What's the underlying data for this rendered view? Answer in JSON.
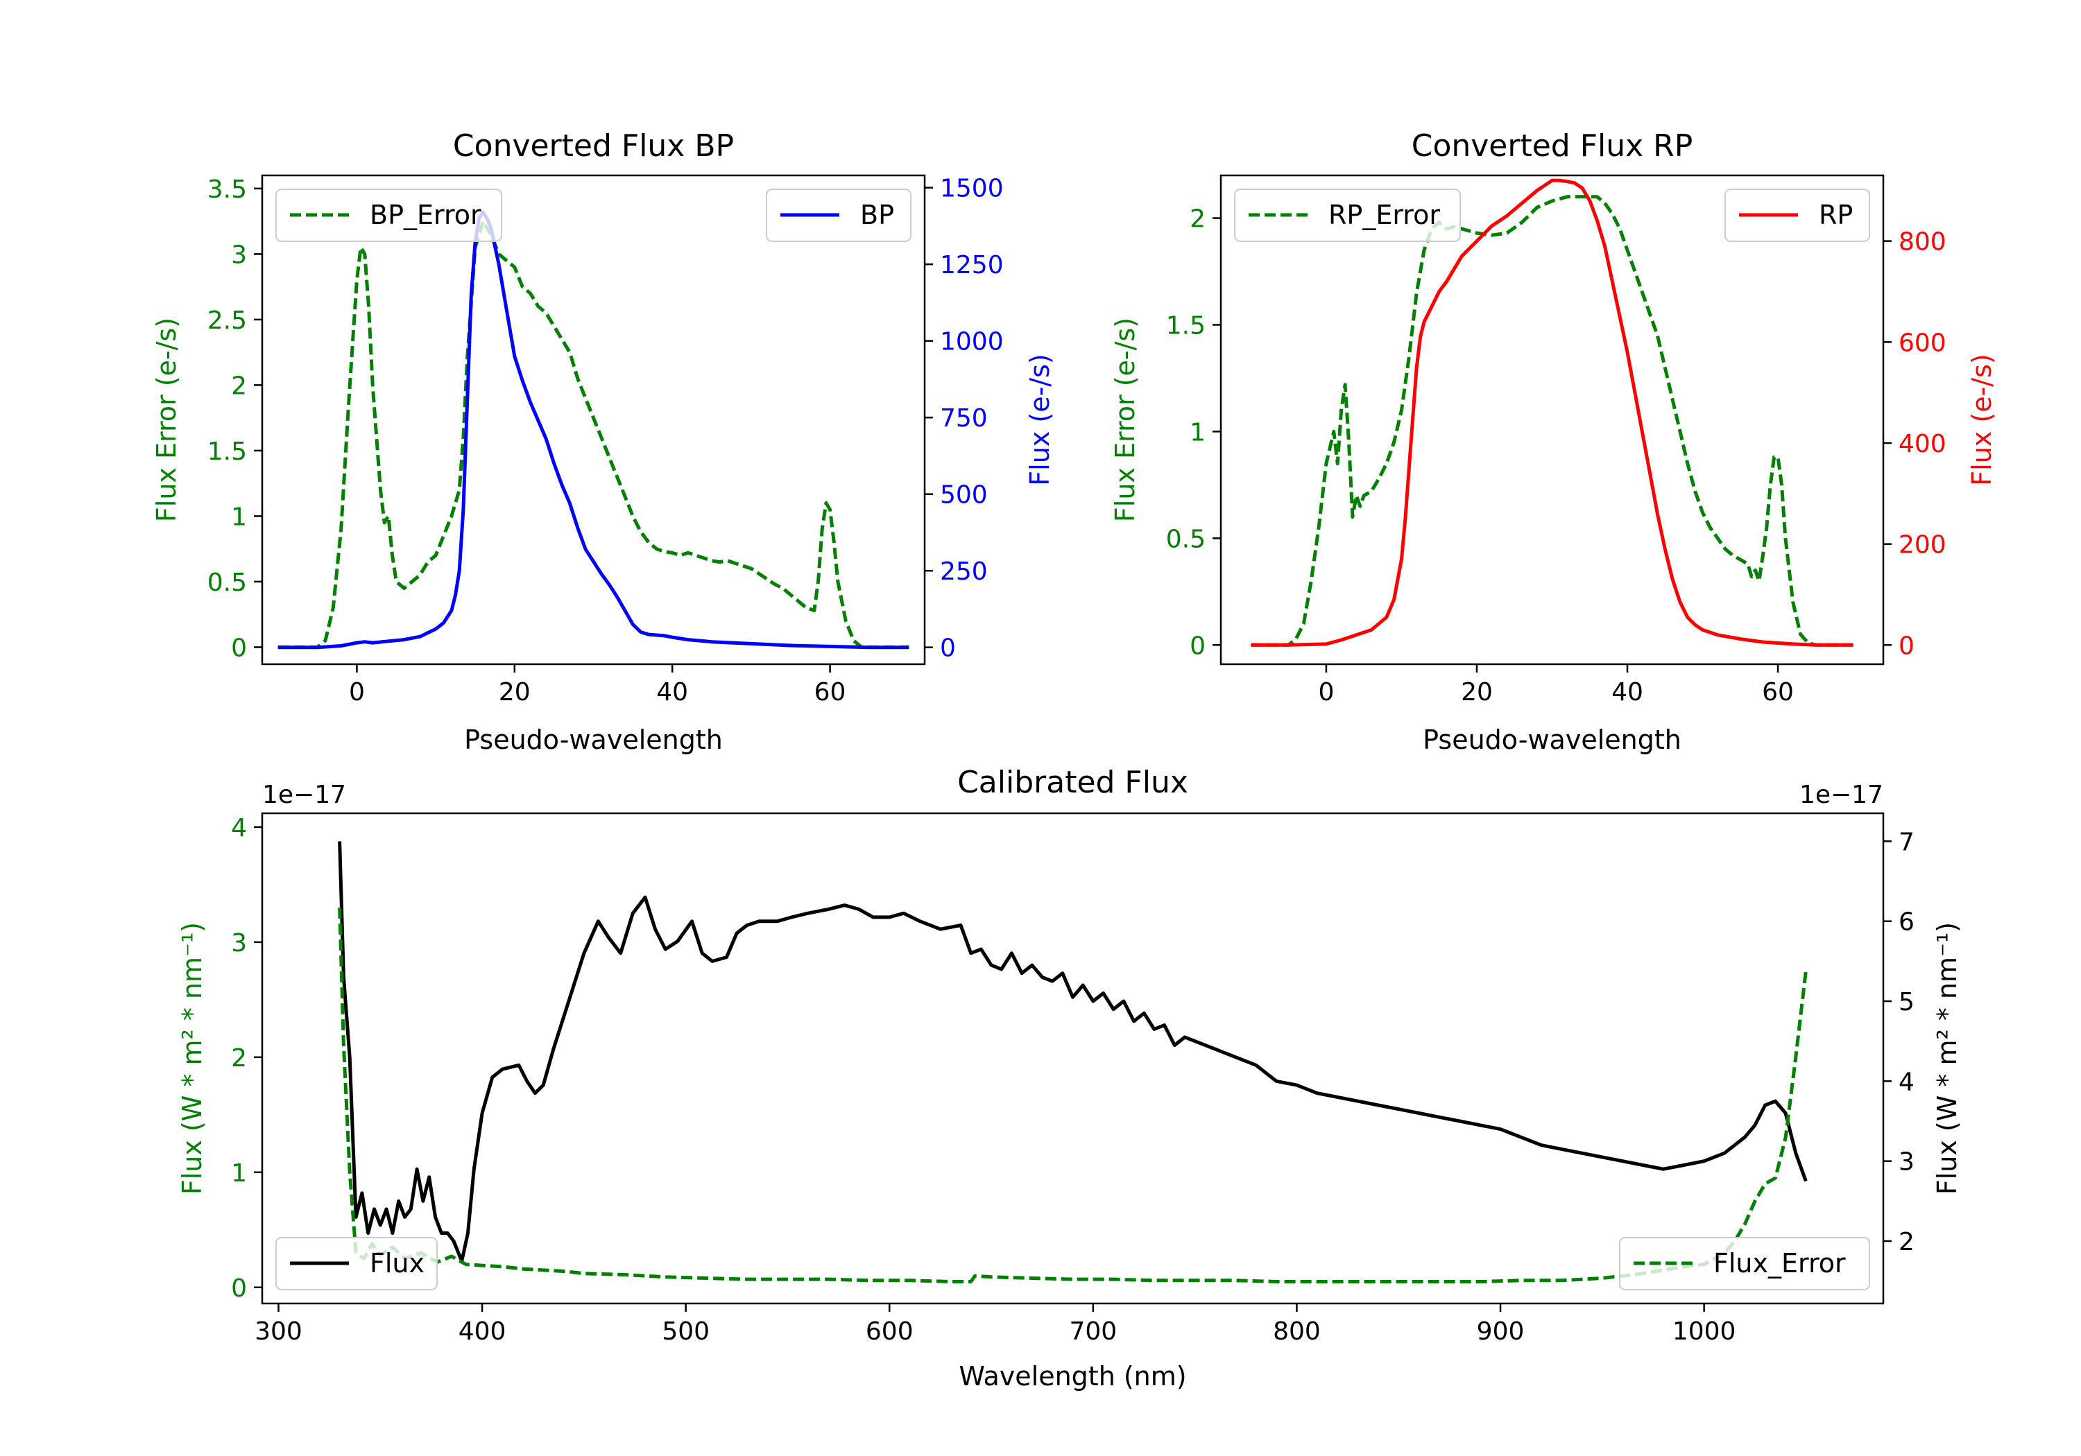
{
  "colors": {
    "green": "#008000",
    "blue": "#0000ff",
    "red": "#ff0000",
    "black": "#000000"
  },
  "chart_data": [
    {
      "type": "line",
      "id": "bp",
      "title": "Converted Flux BP",
      "xlabel": "Pseudo-wavelength",
      "ylabel_left": "Flux Error (e-/s)",
      "ylabel_right": "Flux (e-/s)",
      "xlim": [
        -12,
        72
      ],
      "ylim_left": [
        -0.13,
        3.6
      ],
      "ylim_right": [
        -55,
        1540
      ],
      "xticks": [
        0,
        20,
        40,
        60
      ],
      "yticks_left": [
        0.0,
        0.5,
        1.0,
        1.5,
        2.0,
        2.5,
        3.0,
        3.5
      ],
      "yticks_right": [
        0,
        250,
        500,
        750,
        1000,
        1250,
        1500
      ],
      "series": [
        {
          "name": "BP_Error",
          "axis": "left",
          "style": "dashed",
          "color": "#008000",
          "legend": "upper left",
          "x": [
            -10,
            -5,
            -4,
            -3,
            -2,
            -1,
            0,
            0.5,
            1,
            1.5,
            2,
            3,
            3.5,
            4,
            4.5,
            5,
            6,
            7,
            8,
            9,
            10,
            11,
            12,
            13,
            13.5,
            14,
            15,
            16,
            17,
            18,
            19,
            20,
            21,
            22,
            23,
            24,
            25,
            26,
            27,
            28,
            29,
            30,
            31,
            32,
            33,
            34,
            35,
            36,
            37,
            38,
            39,
            40,
            41,
            42,
            43,
            44,
            45,
            46,
            47,
            48,
            49,
            50,
            51,
            52,
            53,
            54,
            55,
            56,
            57,
            58,
            58.5,
            59,
            59.5,
            60,
            60.5,
            61,
            62,
            63,
            64,
            65,
            66,
            70
          ],
          "y": [
            0.0,
            0.0,
            0.05,
            0.3,
            0.9,
            1.9,
            2.8,
            3.05,
            3.0,
            2.6,
            2.0,
            1.2,
            0.95,
            1.0,
            0.7,
            0.5,
            0.45,
            0.5,
            0.55,
            0.65,
            0.7,
            0.85,
            1.0,
            1.2,
            1.6,
            2.2,
            3.05,
            3.25,
            3.15,
            3.0,
            2.95,
            2.9,
            2.75,
            2.7,
            2.6,
            2.55,
            2.45,
            2.35,
            2.25,
            2.05,
            1.9,
            1.75,
            1.6,
            1.45,
            1.3,
            1.15,
            1.0,
            0.88,
            0.8,
            0.75,
            0.73,
            0.72,
            0.7,
            0.72,
            0.7,
            0.68,
            0.66,
            0.65,
            0.66,
            0.64,
            0.62,
            0.6,
            0.56,
            0.52,
            0.48,
            0.45,
            0.4,
            0.35,
            0.3,
            0.28,
            0.5,
            0.9,
            1.1,
            1.05,
            0.8,
            0.5,
            0.2,
            0.05,
            0.0,
            0.0,
            0.0,
            0.0
          ]
        },
        {
          "name": "BP",
          "axis": "right",
          "style": "solid",
          "color": "#0000ff",
          "legend": "upper right",
          "x": [
            -10,
            -5,
            -2,
            0,
            1,
            2,
            4,
            6,
            8,
            10,
            11,
            12,
            12.5,
            13,
            13.5,
            14,
            14.5,
            15,
            15.5,
            16,
            16.5,
            17,
            18,
            19,
            20,
            21,
            22,
            23,
            24,
            25,
            26,
            27,
            28,
            29,
            30,
            31,
            32,
            33,
            34,
            35,
            36,
            37,
            38,
            39,
            40,
            42,
            45,
            50,
            55,
            60,
            65,
            70
          ],
          "y": [
            0,
            0,
            5,
            15,
            18,
            15,
            20,
            25,
            35,
            60,
            80,
            120,
            170,
            250,
            450,
            800,
            1150,
            1320,
            1400,
            1420,
            1400,
            1370,
            1250,
            1100,
            950,
            870,
            800,
            740,
            680,
            600,
            530,
            470,
            390,
            320,
            280,
            240,
            205,
            165,
            120,
            75,
            50,
            42,
            40,
            38,
            33,
            25,
            18,
            12,
            6,
            3,
            0,
            0
          ]
        }
      ]
    },
    {
      "type": "line",
      "id": "rp",
      "title": "Converted Flux RP",
      "xlabel": "Pseudo-wavelength",
      "ylabel_left": "Flux Error (e-/s)",
      "ylabel_right": "Flux (e-/s)",
      "xlim": [
        -14,
        74
      ],
      "ylim_left": [
        -0.09,
        2.2
      ],
      "ylim_right": [
        -38,
        930
      ],
      "xticks": [
        0,
        20,
        40,
        60
      ],
      "yticks_left": [
        0.0,
        0.5,
        1.0,
        1.5,
        2.0
      ],
      "yticks_right": [
        0,
        200,
        400,
        600,
        800
      ],
      "series": [
        {
          "name": "RP_Error",
          "axis": "left",
          "style": "dashed",
          "color": "#008000",
          "legend": "upper left",
          "x": [
            -10,
            -5,
            -4,
            -3,
            -2,
            -1,
            0,
            1,
            1.5,
            2,
            2.5,
            3,
            3.5,
            4,
            4.5,
            5,
            6,
            7,
            8,
            9,
            10,
            11,
            12,
            13,
            14,
            15,
            16,
            17,
            18,
            20,
            22,
            24,
            26,
            28,
            30,
            32,
            34,
            36,
            37,
            38,
            39,
            40,
            41,
            42,
            43,
            44,
            45,
            46,
            47,
            48,
            49,
            50,
            51,
            52,
            53,
            54,
            55,
            56,
            56.5,
            57,
            57.5,
            58,
            58.5,
            59,
            59.5,
            60,
            60.5,
            61,
            62,
            63,
            64,
            65,
            70
          ],
          "y": [
            0.0,
            0.0,
            0.03,
            0.1,
            0.3,
            0.55,
            0.85,
            1.0,
            0.85,
            1.1,
            1.22,
            0.95,
            0.6,
            0.7,
            0.65,
            0.7,
            0.72,
            0.78,
            0.85,
            0.95,
            1.1,
            1.35,
            1.65,
            1.85,
            1.95,
            1.98,
            1.95,
            1.96,
            1.95,
            1.93,
            1.92,
            1.93,
            1.98,
            2.05,
            2.08,
            2.1,
            2.1,
            2.1,
            2.07,
            2.02,
            1.95,
            1.85,
            1.75,
            1.65,
            1.55,
            1.45,
            1.3,
            1.15,
            1.0,
            0.85,
            0.72,
            0.62,
            0.55,
            0.5,
            0.45,
            0.42,
            0.4,
            0.38,
            0.32,
            0.35,
            0.3,
            0.42,
            0.55,
            0.75,
            0.88,
            0.88,
            0.75,
            0.5,
            0.2,
            0.05,
            0.01,
            0.0,
            0.0
          ]
        },
        {
          "name": "RP",
          "axis": "right",
          "style": "solid",
          "color": "#ff0000",
          "legend": "upper right",
          "x": [
            -10,
            -5,
            0,
            2,
            4,
            6,
            8,
            9,
            10,
            10.5,
            11,
            11.5,
            12,
            12.5,
            13,
            14,
            15,
            16,
            17,
            18,
            19,
            20,
            21,
            22,
            24,
            26,
            28,
            29,
            30,
            31,
            32,
            33,
            34,
            35,
            36,
            37,
            38,
            39,
            40,
            41,
            42,
            43,
            44,
            45,
            46,
            47,
            48,
            49,
            50,
            52,
            55,
            58,
            62,
            65,
            70
          ],
          "y": [
            0,
            0,
            2,
            10,
            20,
            30,
            55,
            90,
            170,
            250,
            350,
            450,
            550,
            610,
            640,
            670,
            700,
            720,
            745,
            770,
            785,
            800,
            815,
            830,
            850,
            875,
            900,
            910,
            920,
            920,
            918,
            915,
            905,
            880,
            840,
            790,
            720,
            650,
            580,
            500,
            420,
            340,
            260,
            190,
            130,
            85,
            55,
            40,
            30,
            20,
            12,
            6,
            2,
            0,
            0
          ]
        }
      ]
    },
    {
      "type": "line",
      "id": "cal",
      "title": "Calibrated Flux",
      "xlabel": "Wavelength (nm)",
      "ylabel_left": "Flux (W * m² * nm⁻¹)",
      "ylabel_right": "Flux (W * m² * nm⁻¹)",
      "offset_left": "1e−17",
      "offset_right": "1e−17",
      "xlim": [
        292,
        1088
      ],
      "ylim_left": [
        -0.14,
        4.12
      ],
      "ylim_right": [
        1.22,
        7.35
      ],
      "xticks": [
        300,
        400,
        500,
        600,
        700,
        800,
        900,
        1000
      ],
      "yticks_left": [
        0,
        1,
        2,
        3,
        4
      ],
      "yticks_right": [
        2,
        3,
        4,
        5,
        6,
        7
      ],
      "series": [
        {
          "name": "Flux",
          "axis": "right",
          "style": "solid",
          "color": "#000000",
          "legend": "lower left",
          "x": [
            330,
            332,
            335,
            338,
            341,
            344,
            347,
            350,
            353,
            356,
            359,
            362,
            365,
            368,
            371,
            374,
            377,
            380,
            383,
            386,
            390,
            393,
            396,
            400,
            405,
            410,
            418,
            422,
            426,
            430,
            435,
            440,
            445,
            450,
            457,
            462,
            468,
            474,
            480,
            485,
            490,
            496,
            503,
            508,
            513,
            520,
            525,
            530,
            536,
            545,
            552,
            560,
            570,
            578,
            585,
            592,
            600,
            607,
            615,
            625,
            635,
            640,
            645,
            650,
            655,
            660,
            665,
            670,
            675,
            680,
            685,
            690,
            695,
            700,
            705,
            710,
            715,
            720,
            725,
            730,
            735,
            740,
            745,
            750,
            760,
            770,
            780,
            790,
            800,
            810,
            820,
            830,
            840,
            850,
            860,
            870,
            880,
            890,
            900,
            910,
            920,
            930,
            940,
            950,
            960,
            970,
            980,
            990,
            1000,
            1010,
            1020,
            1025,
            1030,
            1035,
            1040,
            1045,
            1050
          ],
          "y": [
            7.0,
            5.3,
            4.3,
            2.3,
            2.6,
            2.1,
            2.4,
            2.2,
            2.4,
            2.1,
            2.5,
            2.3,
            2.4,
            2.9,
            2.5,
            2.8,
            2.3,
            2.1,
            2.1,
            2.0,
            1.75,
            2.1,
            2.9,
            3.6,
            4.05,
            4.15,
            4.2,
            4.0,
            3.85,
            3.95,
            4.4,
            4.8,
            5.2,
            5.6,
            6.0,
            5.8,
            5.6,
            6.1,
            6.3,
            5.9,
            5.65,
            5.75,
            6.0,
            5.6,
            5.5,
            5.55,
            5.85,
            5.95,
            6.0,
            6.0,
            6.05,
            6.1,
            6.15,
            6.2,
            6.15,
            6.05,
            6.05,
            6.1,
            6.0,
            5.9,
            5.95,
            5.6,
            5.65,
            5.45,
            5.4,
            5.6,
            5.35,
            5.45,
            5.3,
            5.25,
            5.35,
            5.05,
            5.2,
            5.0,
            5.1,
            4.9,
            5.0,
            4.75,
            4.85,
            4.65,
            4.7,
            4.45,
            4.55,
            4.5,
            4.4,
            4.3,
            4.2,
            4.0,
            3.95,
            3.85,
            3.8,
            3.75,
            3.7,
            3.65,
            3.6,
            3.55,
            3.5,
            3.45,
            3.4,
            3.3,
            3.2,
            3.15,
            3.1,
            3.05,
            3.0,
            2.95,
            2.9,
            2.95,
            3.0,
            3.1,
            3.3,
            3.45,
            3.7,
            3.75,
            3.6,
            3.1,
            2.75
          ]
        },
        {
          "name": "Flux_Error",
          "axis": "left",
          "style": "dashed",
          "color": "#008000",
          "legend": "lower right",
          "x": [
            330,
            332,
            335,
            338,
            342,
            346,
            350,
            356,
            362,
            370,
            378,
            385,
            392,
            400,
            410,
            420,
            430,
            440,
            450,
            470,
            490,
            510,
            530,
            550,
            570,
            590,
            610,
            630,
            640,
            642,
            650,
            670,
            690,
            710,
            730,
            750,
            770,
            790,
            810,
            830,
            850,
            870,
            890,
            910,
            930,
            950,
            960,
            970,
            980,
            990,
            1000,
            1010,
            1015,
            1020,
            1025,
            1030,
            1035,
            1040,
            1045,
            1050
          ],
          "y": [
            3.3,
            2.1,
            1.0,
            0.3,
            0.25,
            0.38,
            0.28,
            0.35,
            0.25,
            0.3,
            0.22,
            0.27,
            0.2,
            0.19,
            0.18,
            0.16,
            0.15,
            0.14,
            0.12,
            0.11,
            0.09,
            0.08,
            0.07,
            0.07,
            0.07,
            0.06,
            0.06,
            0.05,
            0.05,
            0.1,
            0.09,
            0.08,
            0.07,
            0.07,
            0.06,
            0.06,
            0.06,
            0.05,
            0.05,
            0.05,
            0.05,
            0.05,
            0.05,
            0.06,
            0.06,
            0.08,
            0.1,
            0.12,
            0.15,
            0.18,
            0.2,
            0.3,
            0.4,
            0.55,
            0.75,
            0.9,
            0.95,
            1.3,
            2.0,
            2.75
          ]
        }
      ]
    }
  ]
}
